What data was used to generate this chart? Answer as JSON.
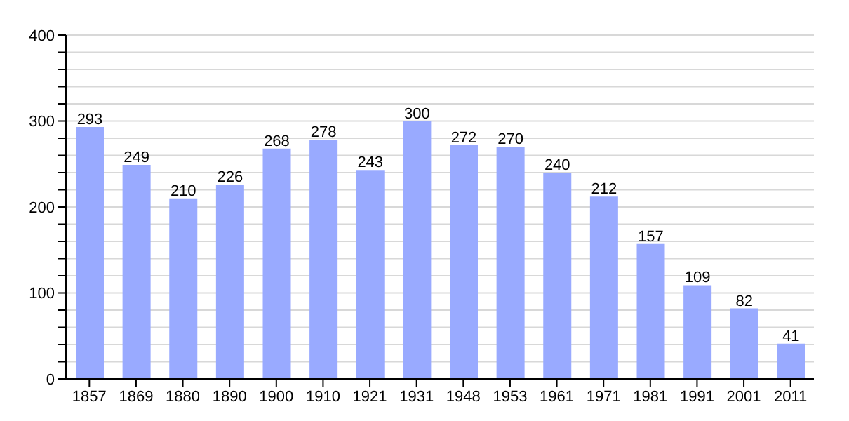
{
  "chart_data": {
    "type": "bar",
    "categories": [
      "1857",
      "1869",
      "1880",
      "1890",
      "1900",
      "1910",
      "1921",
      "1931",
      "1948",
      "1953",
      "1961",
      "1971",
      "1981",
      "1991",
      "2001",
      "2011"
    ],
    "values": [
      293,
      249,
      210,
      226,
      268,
      278,
      243,
      300,
      272,
      270,
      240,
      212,
      157,
      109,
      82,
      41
    ],
    "color": "#99aaff",
    "ylim": [
      0,
      400
    ],
    "yticks": [
      0,
      {
        "value": 20,
        "label": null
      },
      {
        "value": 40,
        "label": null
      },
      {
        "value": 60,
        "label": null
      },
      {
        "value": 80,
        "label": null
      },
      100,
      {
        "value": 120,
        "label": null
      },
      {
        "value": 140,
        "label": null
      },
      {
        "value": 160,
        "label": null
      },
      {
        "value": 180,
        "label": null
      },
      200,
      {
        "value": 220,
        "label": null
      },
      {
        "value": 240,
        "label": null
      },
      {
        "value": 260,
        "label": null
      },
      {
        "value": 280,
        "label": null
      },
      300,
      {
        "value": 320,
        "label": null
      },
      {
        "value": 340,
        "label": null
      },
      {
        "value": 360,
        "label": null
      },
      {
        "value": 380,
        "label": null
      },
      400
    ],
    "grid": "y",
    "data_labels": true
  }
}
